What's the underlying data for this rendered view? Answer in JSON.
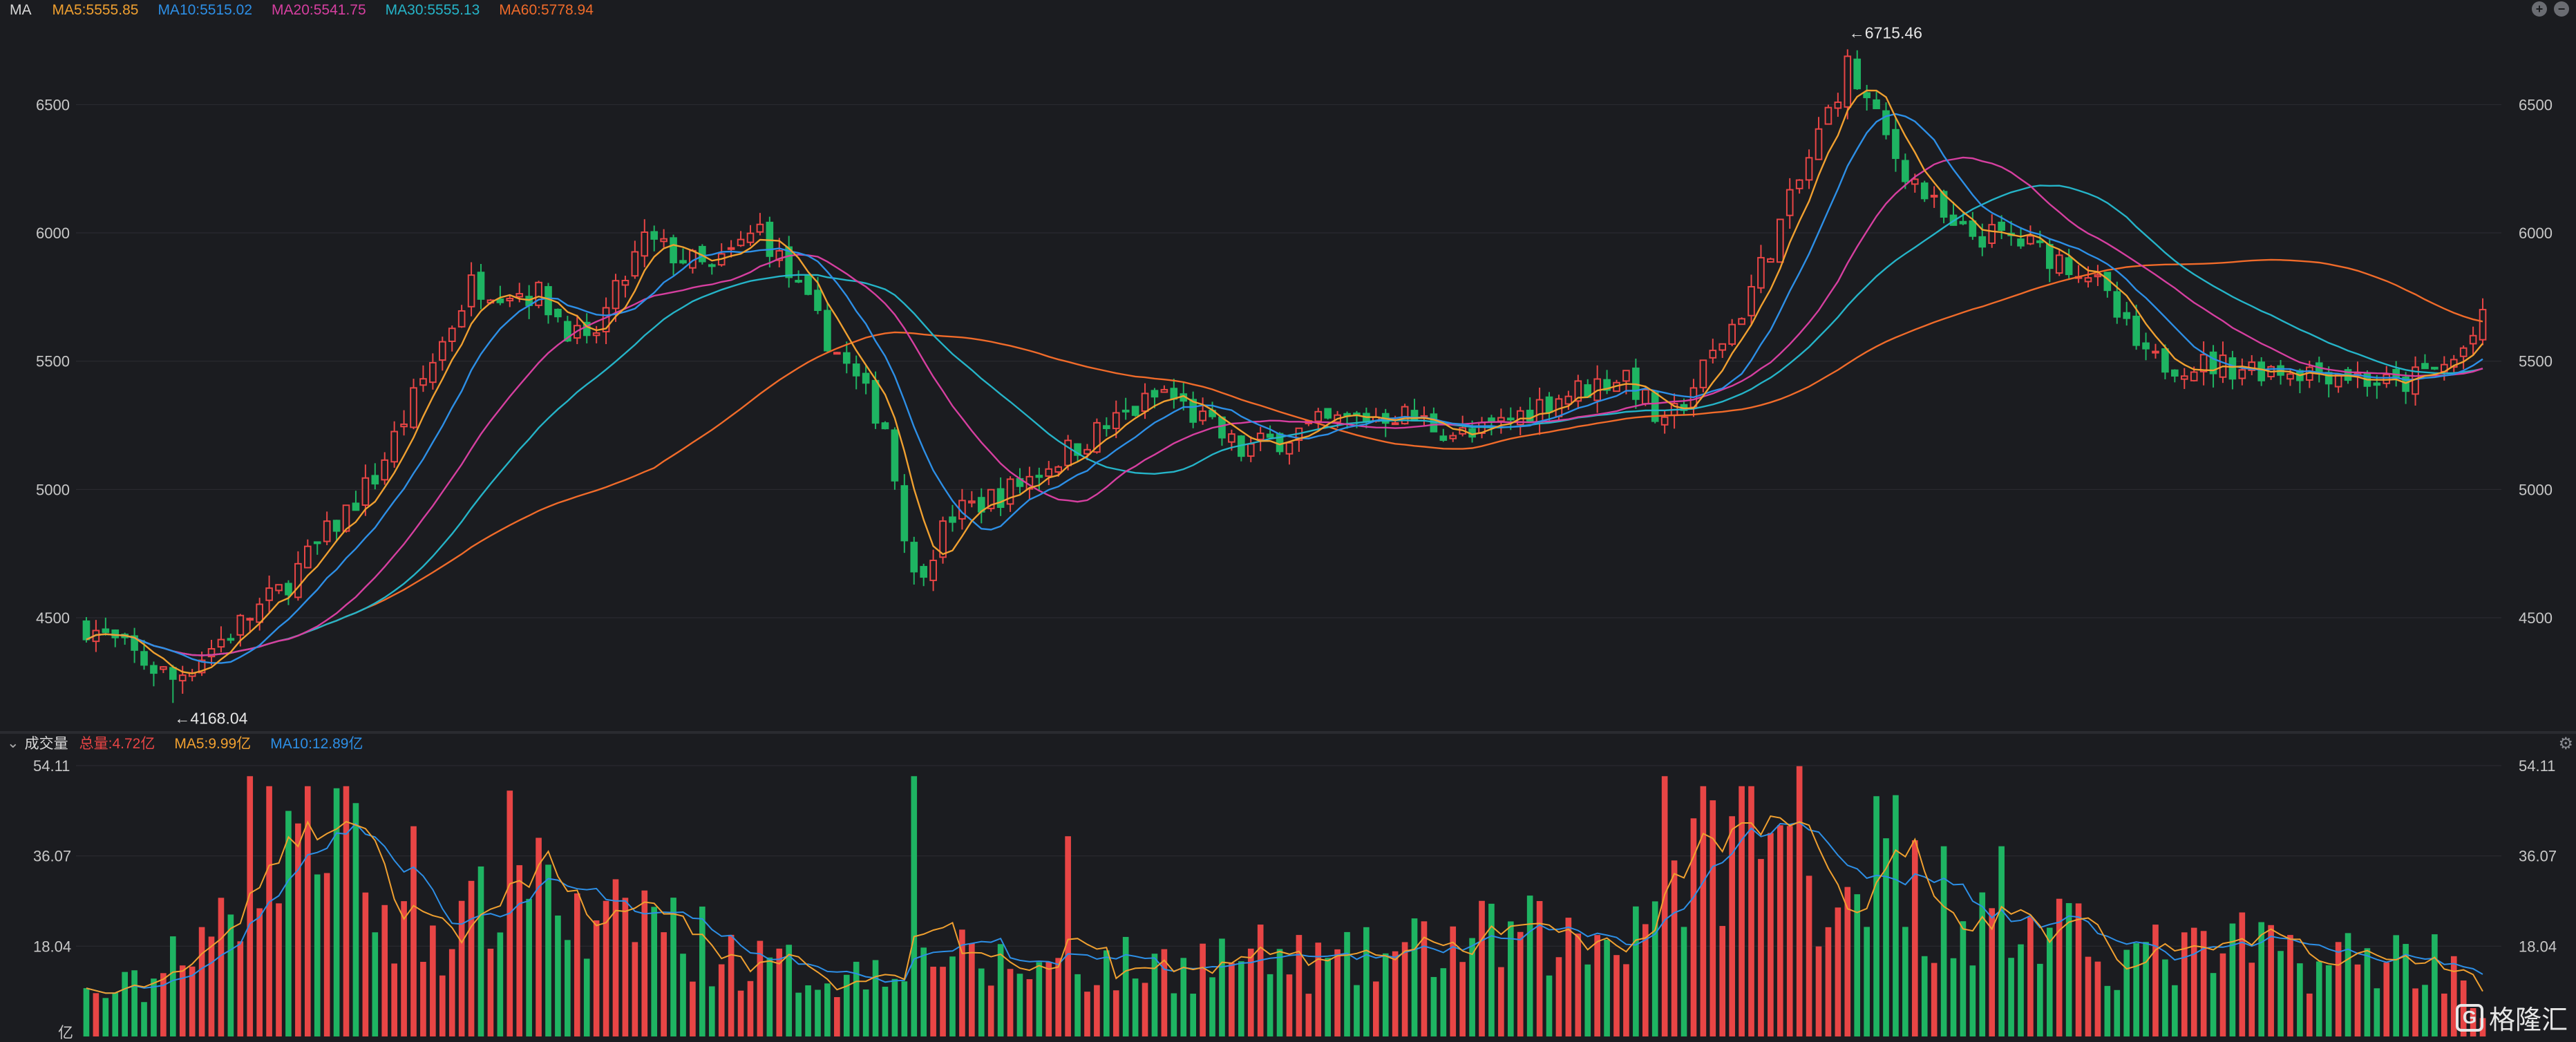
{
  "header": {
    "name": "MA",
    "ma_items": [
      {
        "label": "MA5:5555.85",
        "color": "#f0a030"
      },
      {
        "label": "MA10:5515.02",
        "color": "#2d8fe6"
      },
      {
        "label": "MA20:5541.75",
        "color": "#d63fa0"
      },
      {
        "label": "MA30:5555.13",
        "color": "#25b4c8"
      },
      {
        "label": "MA60:5778.94",
        "color": "#f06b2a"
      }
    ]
  },
  "volume_header": {
    "name": "成交量",
    "items": [
      {
        "label": "总量:4.72亿",
        "color": "#e84545"
      },
      {
        "label": "MA5:9.99亿",
        "color": "#f0a030"
      },
      {
        "label": "MA10:12.89亿",
        "color": "#2d8fe6"
      }
    ]
  },
  "tool_icons": [
    "add-icon",
    "remove-icon"
  ],
  "logo": {
    "text": "格隆汇",
    "mark": "G"
  },
  "chart_data": [
    {
      "type": "candlestick",
      "y_ticks": [
        "4500",
        "5000",
        "5500",
        "6000",
        "6500"
      ],
      "ylim": [
        4080,
        6800
      ],
      "annotations": [
        {
          "label": "←6715.46",
          "index": 183,
          "value": 6715.46
        },
        {
          "label": "←4168.04",
          "index": 9,
          "value": 4168.04
        }
      ],
      "key_levels": [
        [
          0,
          4470
        ],
        [
          9,
          4260
        ],
        [
          20,
          4600
        ],
        [
          30,
          5050
        ],
        [
          40,
          5800
        ],
        [
          47,
          5760
        ],
        [
          52,
          5550
        ],
        [
          58,
          5970
        ],
        [
          65,
          5850
        ],
        [
          70,
          6020
        ],
        [
          76,
          5650
        ],
        [
          83,
          5250
        ],
        [
          86,
          4650
        ],
        [
          90,
          4900
        ],
        [
          96,
          5000
        ],
        [
          104,
          5200
        ],
        [
          112,
          5380
        ],
        [
          120,
          5150
        ],
        [
          128,
          5250
        ],
        [
          136,
          5300
        ],
        [
          144,
          5200
        ],
        [
          152,
          5350
        ],
        [
          160,
          5450
        ],
        [
          164,
          5230
        ],
        [
          172,
          5700
        ],
        [
          178,
          6200
        ],
        [
          183,
          6650
        ],
        [
          188,
          6300
        ],
        [
          194,
          6000
        ],
        [
          200,
          5980
        ],
        [
          208,
          5850
        ],
        [
          214,
          5500
        ],
        [
          224,
          5480
        ],
        [
          234,
          5460
        ],
        [
          240,
          5400
        ],
        [
          246,
          5500
        ],
        [
          249,
          5650
        ]
      ],
      "volume_levels": [
        [
          0,
          8
        ],
        [
          6,
          10
        ],
        [
          12,
          16
        ],
        [
          18,
          38
        ],
        [
          22,
          48
        ],
        [
          26,
          42
        ],
        [
          32,
          20
        ],
        [
          40,
          22
        ],
        [
          46,
          40
        ],
        [
          52,
          18
        ],
        [
          58,
          26
        ],
        [
          62,
          20
        ],
        [
          70,
          14
        ],
        [
          80,
          12
        ],
        [
          86,
          20
        ],
        [
          92,
          14
        ],
        [
          100,
          14
        ],
        [
          110,
          14
        ],
        [
          120,
          16
        ],
        [
          130,
          14
        ],
        [
          140,
          18
        ],
        [
          150,
          20
        ],
        [
          156,
          18
        ],
        [
          164,
          28
        ],
        [
          172,
          44
        ],
        [
          176,
          36
        ],
        [
          182,
          28
        ],
        [
          186,
          42
        ],
        [
          192,
          24
        ],
        [
          198,
          22
        ],
        [
          204,
          20
        ],
        [
          212,
          16
        ],
        [
          220,
          16
        ],
        [
          226,
          18
        ],
        [
          232,
          15
        ],
        [
          240,
          16
        ],
        [
          246,
          15
        ],
        [
          249,
          5
        ]
      ],
      "big_volume_bars": [
        [
          9,
          20
        ],
        [
          17,
          52
        ],
        [
          34,
          42
        ],
        [
          86,
          52
        ],
        [
          102,
          40
        ],
        [
          164,
          52
        ],
        [
          171,
          44
        ],
        [
          178,
          54
        ],
        [
          186,
          48
        ],
        [
          193,
          38
        ],
        [
          199,
          38
        ]
      ],
      "bar_count": 250,
      "series_colors": {
        "up": "#e84545",
        "down": "#1eb462"
      }
    },
    {
      "type": "volume-bar",
      "y_ticks": [
        "54.11",
        "36.07",
        "18.04",
        "亿"
      ],
      "ylim": [
        0,
        54.11
      ]
    }
  ]
}
